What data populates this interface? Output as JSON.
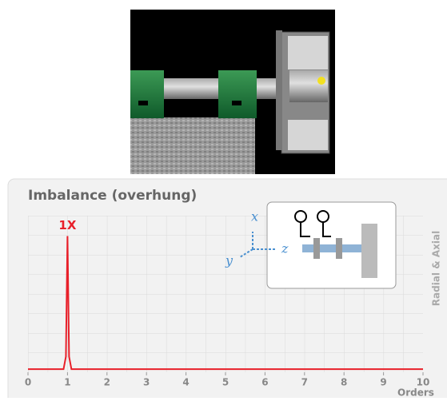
{
  "chart_data": {
    "type": "line",
    "title": "Imbalance (overhung)",
    "x_label": "Orders",
    "side_label": "Radial & Axial",
    "annotation": "1X",
    "axis_letters": [
      "x",
      "y",
      "z"
    ],
    "series": [
      {
        "color": "#e8202a",
        "x": [
          0,
          0.9,
          0.96,
          1,
          1.04,
          1.1,
          10
        ],
        "values": [
          0.02,
          0.02,
          0.1,
          0.87,
          0.1,
          0.02,
          0.02
        ]
      }
    ],
    "xlim": [
      0,
      10
    ],
    "ylim": [
      0,
      1
    ],
    "xticks": [
      0,
      1,
      2,
      3,
      4,
      5,
      6,
      7,
      8,
      9,
      10
    ]
  }
}
